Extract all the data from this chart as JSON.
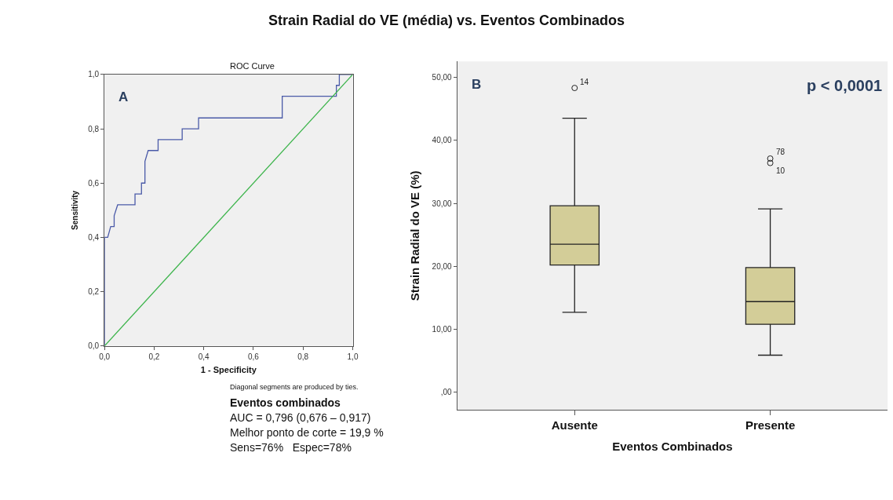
{
  "chart_data": [
    {
      "type": "line",
      "title": "Strain Radial do VE (média) vs. Eventos Combinados",
      "subtitle": "ROC Curve",
      "xlabel": "1 - Specificity",
      "ylabel": "Sensitivity",
      "series": [
        {
          "color": "#4a5aa8",
          "x": [
            0,
            0,
            0.013,
            0.025,
            0.039,
            0.039,
            0.053,
            0.123,
            0.123,
            0.149,
            0.149,
            0.163,
            0.163,
            0.176,
            0.216,
            0.216,
            0.313,
            0.313,
            0.379,
            0.379,
            0.716,
            0.716,
            0.934,
            0.934,
            0.946,
            0.946,
            1.0
          ],
          "values": [
            0,
            0.4,
            0.4,
            0.44,
            0.44,
            0.48,
            0.52,
            0.52,
            0.56,
            0.56,
            0.6,
            0.6,
            0.68,
            0.72,
            0.72,
            0.76,
            0.76,
            0.8,
            0.8,
            0.84,
            0.84,
            0.92,
            0.92,
            0.96,
            0.96,
            1.0,
            1.0
          ]
        },
        {
          "color": "#3cb44b",
          "x": [
            0,
            1
          ],
          "values": [
            0,
            1
          ]
        }
      ],
      "xlim": [
        0,
        1
      ],
      "ylim": [
        0,
        1
      ],
      "xticks": [
        {
          "value": 0,
          "label": "0,0"
        },
        {
          "value": 0.2,
          "label": "0,2"
        },
        {
          "value": 0.4,
          "label": "0,4"
        },
        {
          "value": 0.6,
          "label": "0,6"
        },
        {
          "value": 0.8,
          "label": "0,8"
        },
        {
          "value": 1,
          "label": "1,0"
        }
      ],
      "yticks": [
        {
          "value": 0,
          "label": "0,0"
        },
        {
          "value": 0.2,
          "label": "0,2"
        },
        {
          "value": 0.4,
          "label": "0,4"
        },
        {
          "value": 0.6,
          "label": "0,6"
        },
        {
          "value": 0.8,
          "label": "0,8"
        },
        {
          "value": 1,
          "label": "1,0"
        }
      ],
      "annotations": [
        "A",
        "Diagonal segments are produced by ties.",
        "Eventos combinados",
        "AUC = 0,796 (0,676 – 0,917)",
        "Melhor ponto de corte = 19,9 %",
        "Sens=76%   Espec=78%"
      ],
      "marker": "none",
      "line_style": "solid",
      "grid": false
    },
    {
      "type": "box",
      "xlabel": "Eventos Combinados",
      "ylabel": "Strain Radial do VE (%)",
      "categories": [
        "Ausente",
        "Presente"
      ],
      "color": "#d3cd98",
      "boxes": [
        {
          "low": 12.7,
          "q1": 20.2,
          "median": 23.5,
          "q3": 29.6,
          "high": 43.5,
          "outliers": [
            48.3
          ]
        },
        {
          "low": 5.9,
          "q1": 10.8,
          "median": 14.4,
          "q3": 19.8,
          "high": 29.1,
          "outliers": [
            37.1,
            36.4
          ]
        }
      ],
      "ylim": [
        -2.8,
        52.5
      ],
      "yticks": [
        {
          "value": 0,
          "label": ",00"
        },
        {
          "value": 10,
          "label": "10,00"
        },
        {
          "value": 20,
          "label": "20,00"
        },
        {
          "value": 30,
          "label": "30,00"
        },
        {
          "value": 40,
          "label": "40,00"
        },
        {
          "value": 50,
          "label": "50,00"
        }
      ],
      "annotations": [
        "B",
        "p < 0,0001",
        "14",
        "78",
        "10"
      ],
      "grid": false
    }
  ]
}
